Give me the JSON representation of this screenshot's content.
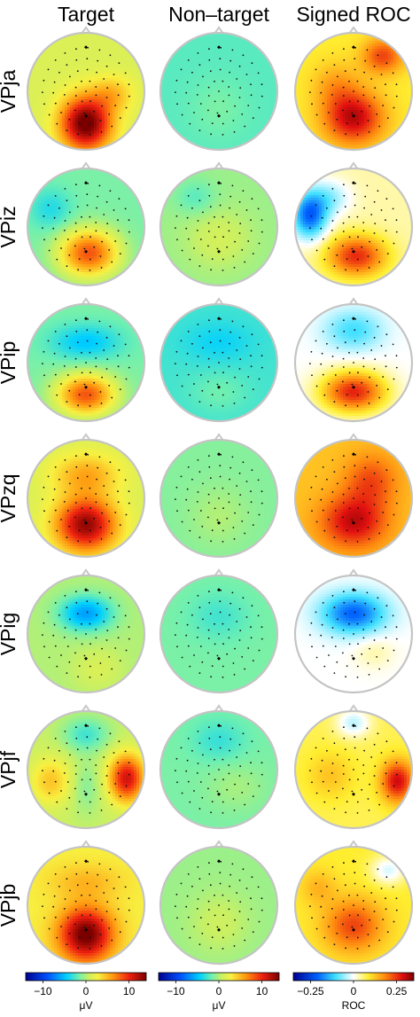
{
  "columns": [
    "Target",
    "Non–target",
    "Signed ROC"
  ],
  "subjects": [
    {
      "name": "VPja",
      "maps": [
        {
          "base": 0.55,
          "blobs": [
            [
              0.0,
              0.55,
              0.42,
              0.45,
              0.48
            ],
            [
              0.45,
              0.05,
              0.35,
              0.3,
              0.12
            ]
          ]
        },
        {
          "base": 0.42,
          "blobs": [
            [
              0.0,
              0.3,
              0.5,
              0.5,
              0.03
            ]
          ]
        },
        {
          "base": 0.62,
          "blobs": [
            [
              0.0,
              0.45,
              0.5,
              0.45,
              0.32
            ],
            [
              0.5,
              -0.6,
              0.35,
              0.3,
              0.22
            ],
            [
              -0.3,
              -0.1,
              0.4,
              0.4,
              0.1
            ]
          ]
        }
      ]
    },
    {
      "name": "VPiz",
      "maps": [
        {
          "base": 0.45,
          "blobs": [
            [
              0.05,
              0.45,
              0.5,
              0.4,
              0.35
            ],
            [
              -0.6,
              -0.3,
              0.35,
              0.35,
              -0.08
            ]
          ]
        },
        {
          "base": 0.48,
          "blobs": [
            [
              0.0,
              0.2,
              0.55,
              0.5,
              0.06
            ],
            [
              -0.4,
              -0.5,
              0.35,
              0.3,
              -0.06
            ]
          ]
        },
        {
          "base": 0.55,
          "blobs": [
            [
              0.05,
              0.5,
              0.5,
              0.35,
              0.32
            ],
            [
              -0.75,
              -0.2,
              0.3,
              0.4,
              -0.35
            ],
            [
              -0.4,
              -0.5,
              0.35,
              0.3,
              -0.12
            ]
          ]
        }
      ]
    },
    {
      "name": "VPip",
      "maps": [
        {
          "base": 0.45,
          "blobs": [
            [
              0.0,
              0.55,
              0.5,
              0.35,
              0.35
            ],
            [
              0.0,
              -0.35,
              0.6,
              0.3,
              -0.12
            ]
          ]
        },
        {
          "base": 0.4,
          "blobs": [
            [
              0.0,
              -0.35,
              0.6,
              0.35,
              -0.05
            ],
            [
              0.0,
              0.5,
              0.5,
              0.35,
              0.04
            ]
          ]
        },
        {
          "base": 0.5,
          "blobs": [
            [
              0.0,
              0.5,
              0.55,
              0.35,
              0.38
            ],
            [
              0.0,
              -0.55,
              0.5,
              0.35,
              -0.15
            ]
          ]
        }
      ]
    },
    {
      "name": "VPzq",
      "maps": [
        {
          "base": 0.55,
          "blobs": [
            [
              0.0,
              0.45,
              0.5,
              0.45,
              0.42
            ],
            [
              0.0,
              -0.4,
              0.55,
              0.35,
              0.15
            ]
          ]
        },
        {
          "base": 0.46,
          "blobs": [
            [
              0.0,
              0.3,
              0.5,
              0.5,
              0.04
            ]
          ]
        },
        {
          "base": 0.68,
          "blobs": [
            [
              0.0,
              0.4,
              0.55,
              0.45,
              0.25
            ],
            [
              0.3,
              -0.3,
              0.45,
              0.45,
              0.15
            ]
          ]
        }
      ]
    },
    {
      "name": "VPig",
      "maps": [
        {
          "base": 0.5,
          "blobs": [
            [
              0.0,
              -0.35,
              0.45,
              0.3,
              -0.22
            ],
            [
              0.2,
              0.6,
              0.4,
              0.35,
              0.05
            ]
          ]
        },
        {
          "base": 0.45,
          "blobs": [
            [
              0.0,
              -0.3,
              0.5,
              0.4,
              -0.05
            ]
          ]
        },
        {
          "base": 0.5,
          "blobs": [
            [
              0.0,
              -0.35,
              0.55,
              0.35,
              -0.3
            ],
            [
              0.35,
              0.3,
              0.35,
              0.3,
              0.05
            ]
          ]
        }
      ]
    },
    {
      "name": "VPjf",
      "maps": [
        {
          "base": 0.52,
          "blobs": [
            [
              0.7,
              0.15,
              0.3,
              0.4,
              0.38
            ],
            [
              -0.6,
              0.2,
              0.35,
              0.4,
              0.14
            ],
            [
              0.0,
              -0.6,
              0.4,
              0.3,
              -0.12
            ],
            [
              0.0,
              0.3,
              0.25,
              0.45,
              -0.06
            ]
          ]
        },
        {
          "base": 0.45,
          "blobs": [
            [
              0.0,
              -0.5,
              0.45,
              0.35,
              -0.06
            ],
            [
              0.3,
              0.3,
              0.5,
              0.4,
              0.04
            ]
          ]
        },
        {
          "base": 0.6,
          "blobs": [
            [
              0.75,
              0.2,
              0.28,
              0.35,
              0.32
            ],
            [
              0.0,
              -0.8,
              0.3,
              0.25,
              -0.15
            ],
            [
              -0.4,
              0.1,
              0.4,
              0.4,
              0.08
            ]
          ]
        }
      ]
    },
    {
      "name": "VPjb",
      "maps": [
        {
          "base": 0.6,
          "blobs": [
            [
              0.0,
              0.5,
              0.45,
              0.45,
              0.42
            ],
            [
              0.0,
              -0.4,
              0.6,
              0.3,
              0.08
            ]
          ]
        },
        {
          "base": 0.48,
          "blobs": [
            [
              0.0,
              0.3,
              0.5,
              0.5,
              0.05
            ]
          ]
        },
        {
          "base": 0.62,
          "blobs": [
            [
              0.0,
              0.35,
              0.5,
              0.45,
              0.22
            ],
            [
              0.6,
              -0.6,
              0.3,
              0.25,
              -0.15
            ],
            [
              -0.6,
              -0.3,
              0.3,
              0.3,
              0.08
            ]
          ]
        }
      ]
    }
  ],
  "colorbars": [
    {
      "ticks": [
        "−10",
        "0",
        "10"
      ],
      "tick_values": [
        -10,
        0,
        10
      ],
      "range": [
        -14,
        14
      ],
      "unit": "μV"
    },
    {
      "ticks": [
        "−10",
        "0",
        "10"
      ],
      "tick_values": [
        -10,
        0,
        10
      ],
      "range": [
        -14,
        14
      ],
      "unit": "μV"
    },
    {
      "ticks": [
        "−0.25",
        "0",
        "0.25"
      ],
      "tick_values": [
        -0.25,
        0,
        0.25
      ],
      "range": [
        -0.35,
        0.35
      ],
      "unit": "ROC"
    }
  ],
  "colormaps": {
    "uv": [
      [
        0.0,
        "#00008f"
      ],
      [
        0.18,
        "#0050ff"
      ],
      [
        0.34,
        "#00d0ff"
      ],
      [
        0.44,
        "#70f0b0"
      ],
      [
        0.52,
        "#c8f064"
      ],
      [
        0.6,
        "#f8f040"
      ],
      [
        0.72,
        "#ff9a10"
      ],
      [
        0.86,
        "#ee2010"
      ],
      [
        1.0,
        "#7a0000"
      ]
    ],
    "roc": [
      [
        0.0,
        "#00008f"
      ],
      [
        0.2,
        "#0060ff"
      ],
      [
        0.35,
        "#40e0ff"
      ],
      [
        0.5,
        "#ffffff"
      ],
      [
        0.62,
        "#ffee30"
      ],
      [
        0.76,
        "#ff8a10"
      ],
      [
        0.9,
        "#e21010"
      ],
      [
        1.0,
        "#7a0000"
      ]
    ]
  }
}
